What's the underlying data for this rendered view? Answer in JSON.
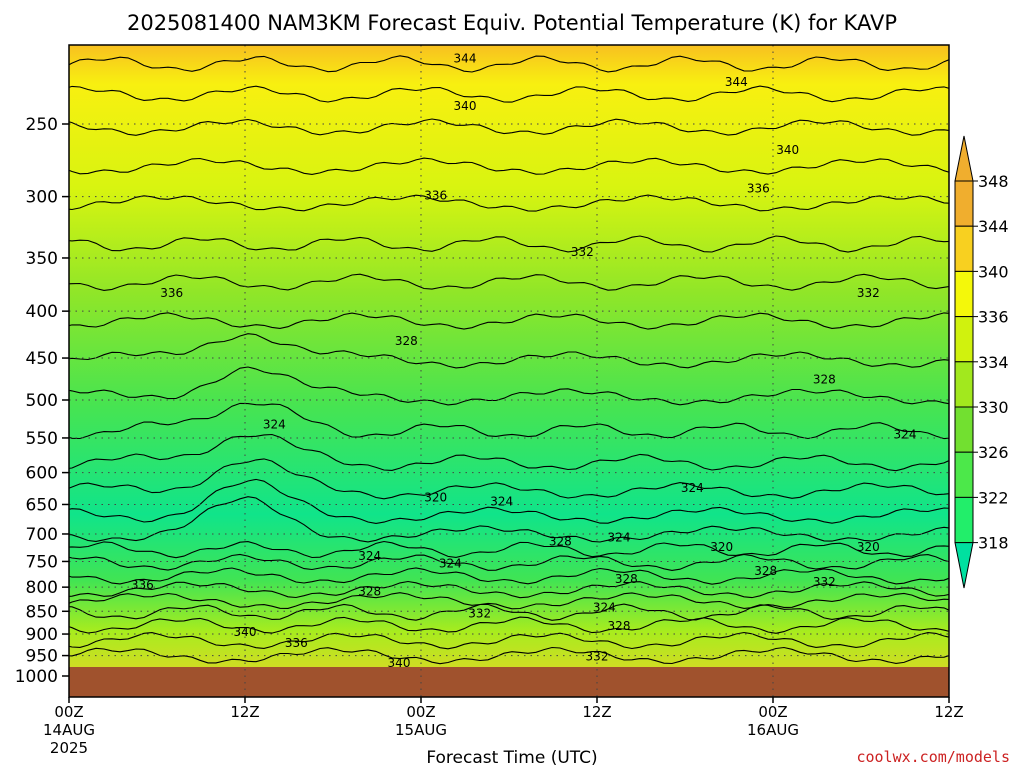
{
  "chart_data": {
    "type": "heatmap",
    "title": "2025081400 NAM3KM Forecast Equiv. Potential Temperature (K) for KAVP",
    "xlabel": "Forecast Time (UTC)",
    "ylabel": "",
    "credit": "coolwx.com/models",
    "y_scale": "log-pressure",
    "y_axis_reversed": true,
    "ylim": [
      1000,
      200
    ],
    "y_ticks": [
      250,
      300,
      350,
      400,
      450,
      500,
      550,
      600,
      650,
      700,
      750,
      800,
      850,
      900,
      950,
      1000
    ],
    "y_tick_labels": [
      "250",
      "300",
      "350",
      "400",
      "450",
      "500",
      "550",
      "600",
      "650",
      "700",
      "750",
      "800",
      "850",
      "900",
      "950",
      "1000"
    ],
    "xlim": [
      0,
      60
    ],
    "x_ticks": [
      {
        "hour": 0,
        "label": "00Z",
        "sublabel": "14AUG",
        "year": "2025"
      },
      {
        "hour": 12,
        "label": "12Z",
        "sublabel": "",
        "year": ""
      },
      {
        "hour": 24,
        "label": "00Z",
        "sublabel": "15AUG",
        "year": ""
      },
      {
        "hour": 36,
        "label": "12Z",
        "sublabel": "",
        "year": ""
      },
      {
        "hour": 48,
        "label": "00Z",
        "sublabel": "16AUG",
        "year": ""
      },
      {
        "hour": 60,
        "label": "12Z",
        "sublabel": "",
        "year": ""
      }
    ],
    "grid": true,
    "colorbar": {
      "levels": [
        318,
        322,
        326,
        330,
        334,
        336,
        340,
        344,
        348
      ],
      "tick_labels": [
        "318",
        "322",
        "326",
        "330",
        "334",
        "336",
        "340",
        "344",
        "348"
      ],
      "colors": [
        "#00e88c",
        "#22ee6a",
        "#4ce84a",
        "#72e030",
        "#a2e81e",
        "#d0f20e",
        "#f4f80a",
        "#f8d020",
        "#f0ae2e"
      ],
      "over_color": "#f0ae2e",
      "under_color": "#00e0a0"
    },
    "ground_color": "#a0522d",
    "contour_labels": [
      {
        "value": "344",
        "hour": 27.0,
        "p": 212
      },
      {
        "value": "344",
        "hour": 45.5,
        "p": 225
      },
      {
        "value": "340",
        "hour": 27.0,
        "p": 239
      },
      {
        "value": "340",
        "hour": 49.0,
        "p": 267
      },
      {
        "value": "336",
        "hour": 25.0,
        "p": 299
      },
      {
        "value": "336",
        "hour": 47.0,
        "p": 294
      },
      {
        "value": "332",
        "hour": 35.0,
        "p": 345
      },
      {
        "value": "332",
        "hour": 54.5,
        "p": 382
      },
      {
        "value": "336",
        "hour": 7.0,
        "p": 382
      },
      {
        "value": "328",
        "hour": 23.0,
        "p": 431
      },
      {
        "value": "328",
        "hour": 51.5,
        "p": 475
      },
      {
        "value": "324",
        "hour": 14.0,
        "p": 532
      },
      {
        "value": "324",
        "hour": 57.0,
        "p": 545
      },
      {
        "value": "324",
        "hour": 42.5,
        "p": 624
      },
      {
        "value": "320",
        "hour": 25.0,
        "p": 639
      },
      {
        "value": "324",
        "hour": 29.5,
        "p": 645
      },
      {
        "value": "324",
        "hour": 37.5,
        "p": 706
      },
      {
        "value": "328",
        "hour": 33.5,
        "p": 713
      },
      {
        "value": "320",
        "hour": 44.5,
        "p": 723
      },
      {
        "value": "320",
        "hour": 54.5,
        "p": 723
      },
      {
        "value": "324",
        "hour": 20.5,
        "p": 740
      },
      {
        "value": "324",
        "hour": 26.0,
        "p": 754
      },
      {
        "value": "328",
        "hour": 38.0,
        "p": 784
      },
      {
        "value": "328",
        "hour": 47.5,
        "p": 768
      },
      {
        "value": "332",
        "hour": 51.5,
        "p": 790
      },
      {
        "value": "336",
        "hour": 5.0,
        "p": 796
      },
      {
        "value": "328",
        "hour": 20.5,
        "p": 809
      },
      {
        "value": "332",
        "hour": 28.0,
        "p": 855
      },
      {
        "value": "324",
        "hour": 36.5,
        "p": 842
      },
      {
        "value": "328",
        "hour": 37.5,
        "p": 882
      },
      {
        "value": "340",
        "hour": 12.0,
        "p": 895
      },
      {
        "value": "336",
        "hour": 15.5,
        "p": 920
      },
      {
        "value": "332",
        "hour": 36.0,
        "p": 952
      },
      {
        "value": "340",
        "hour": 22.5,
        "p": 968
      }
    ]
  }
}
